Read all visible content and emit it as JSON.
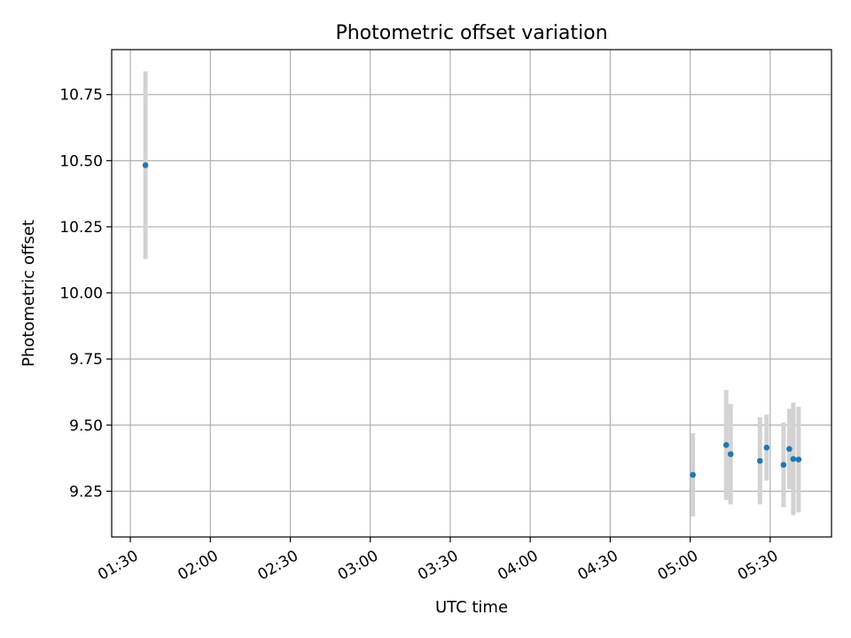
{
  "chart_data": {
    "type": "scatter",
    "title": "Photometric offset variation",
    "xlabel": "UTC time",
    "ylabel": "Photometric offset",
    "grid": true,
    "xlim": [
      "01:23",
      "05:53"
    ],
    "ylim": [
      9.077,
      10.92
    ],
    "x_ticks": [
      "01:30",
      "02:00",
      "02:30",
      "03:00",
      "03:30",
      "04:00",
      "04:30",
      "05:00",
      "05:30"
    ],
    "y_ticks": [
      9.25,
      9.5,
      9.75,
      10.0,
      10.25,
      10.5,
      10.75
    ],
    "y_tick_labels": [
      "9.25",
      "9.50",
      "9.75",
      "10.00",
      "10.25",
      "10.50",
      "10.75"
    ],
    "points": [
      {
        "x": "01:35:40",
        "y": 10.483,
        "err": 0.355
      },
      {
        "x": "05:01:00",
        "y": 9.312,
        "err": 0.157
      },
      {
        "x": "05:13:30",
        "y": 9.425,
        "err": 0.208
      },
      {
        "x": "05:15:10",
        "y": 9.39,
        "err": 0.19
      },
      {
        "x": "05:26:10",
        "y": 9.365,
        "err": 0.165
      },
      {
        "x": "05:28:40",
        "y": 9.415,
        "err": 0.125
      },
      {
        "x": "05:35:00",
        "y": 9.35,
        "err": 0.16
      },
      {
        "x": "05:37:10",
        "y": 9.41,
        "err": 0.152
      },
      {
        "x": "05:38:40",
        "y": 9.372,
        "err": 0.213
      },
      {
        "x": "05:40:40",
        "y": 9.37,
        "err": 0.2
      }
    ],
    "colors": {
      "point": "#1f77b4",
      "errorbar": "#d3d3d3",
      "grid": "#b0b0b0",
      "axis": "#000000"
    }
  }
}
